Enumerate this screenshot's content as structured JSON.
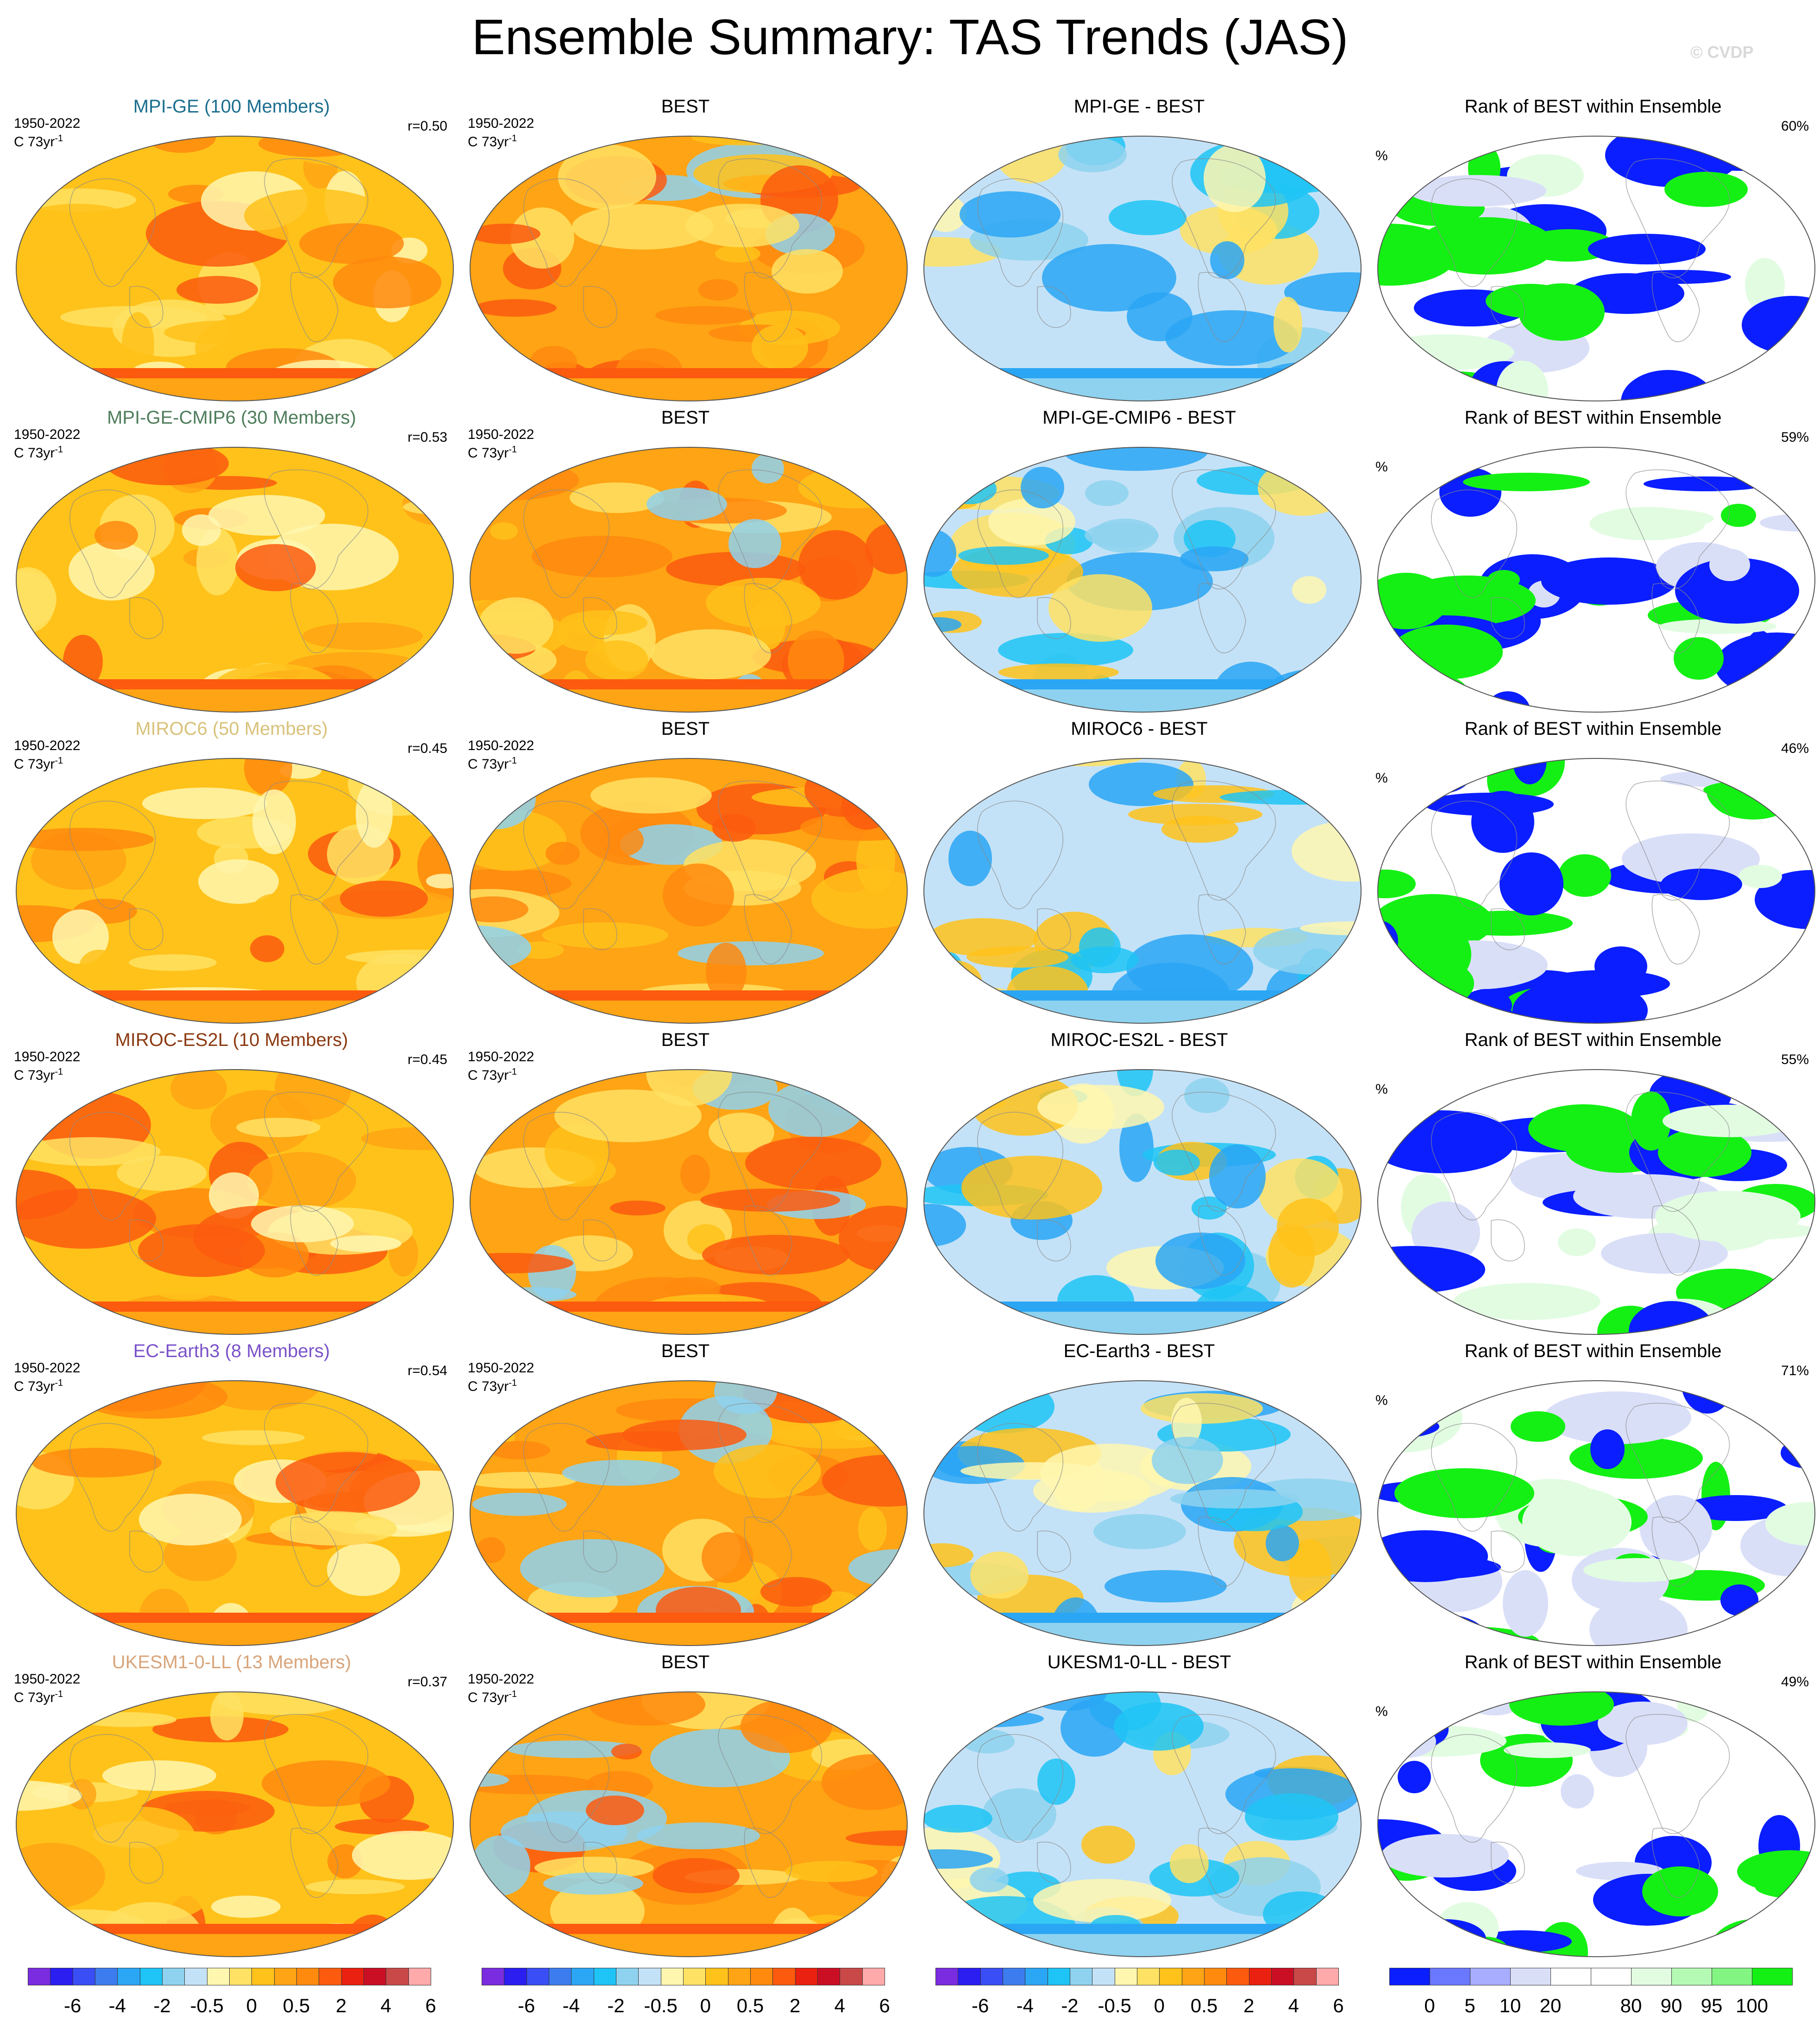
{
  "page": {
    "title": "Ensemble Summary: TAS Trends (JAS)",
    "watermark": "© CVDP"
  },
  "rows": [
    {
      "model_title": "MPI-GE (100 Members)",
      "model_color": "#1a6e8e",
      "period": "1950-2022",
      "units": "C 73yr",
      "units_sup": "-1",
      "r": "r=0.50",
      "obs_title": "BEST",
      "diff_title": "MPI-GE - BEST",
      "rank_title": "Rank of BEST within Ensemble",
      "rank_units": "%",
      "rank_pct": "60%"
    },
    {
      "model_title": "MPI-GE-CMIP6 (30 Members)",
      "model_color": "#4e7d5b",
      "period": "1950-2022",
      "units": "C 73yr",
      "units_sup": "-1",
      "r": "r=0.53",
      "obs_title": "BEST",
      "diff_title": "MPI-GE-CMIP6 - BEST",
      "rank_title": "Rank of BEST within Ensemble",
      "rank_units": "%",
      "rank_pct": "59%"
    },
    {
      "model_title": "MIROC6 (50 Members)",
      "model_color": "#d8c27a",
      "period": "1950-2022",
      "units": "C 73yr",
      "units_sup": "-1",
      "r": "r=0.45",
      "obs_title": "BEST",
      "diff_title": "MIROC6 - BEST",
      "rank_title": "Rank of BEST within Ensemble",
      "rank_units": "%",
      "rank_pct": "46%"
    },
    {
      "model_title": "MIROC-ES2L (10 Members)",
      "model_color": "#8b3a12",
      "period": "1950-2022",
      "units": "C 73yr",
      "units_sup": "-1",
      "r": "r=0.45",
      "obs_title": "BEST",
      "diff_title": "MIROC-ES2L - BEST",
      "rank_title": "Rank of BEST within Ensemble",
      "rank_units": "%",
      "rank_pct": "55%"
    },
    {
      "model_title": "EC-Earth3 (8 Members)",
      "model_color": "#7b52c9",
      "period": "1950-2022",
      "units": "C 73yr",
      "units_sup": "-1",
      "r": "r=0.54",
      "obs_title": "BEST",
      "diff_title": "EC-Earth3 - BEST",
      "rank_title": "Rank of BEST within Ensemble",
      "rank_units": "%",
      "rank_pct": "71%"
    },
    {
      "model_title": "UKESM1-0-LL (13 Members)",
      "model_color": "#d8a47a",
      "period": "1950-2022",
      "units": "C 73yr",
      "units_sup": "-1",
      "r": "r=0.37",
      "obs_title": "BEST",
      "diff_title": "UKESM1-0-LL - BEST",
      "rank_title": "Rank of BEST within Ensemble",
      "rank_units": "%",
      "rank_pct": "49%"
    }
  ],
  "colorbars": {
    "trend": {
      "colors": [
        "#7a2ce0",
        "#2a1ef0",
        "#3a4ef5",
        "#3c7cef",
        "#2aa6f5",
        "#1ec4f5",
        "#8ed2ef",
        "#c4e2f7",
        "#fff7b0",
        "#ffe263",
        "#ffc21a",
        "#ffa414",
        "#ff8a0e",
        "#fc5a0e",
        "#ea2010",
        "#ca0f25",
        "#c94848",
        "#ffaaaa"
      ],
      "labels": [
        "-6",
        "-4",
        "-2",
        "-0.5",
        "0",
        "0.5",
        "2",
        "4",
        "6"
      ]
    },
    "rank": {
      "colors": [
        "#0a1eff",
        "#6a78ff",
        "#a8adff",
        "#dadff8",
        "#ffffff",
        "#ffffff",
        "#e2fce2",
        "#b4fab4",
        "#82f582",
        "#14f014"
      ],
      "labels": [
        "0",
        "5",
        "10",
        "20",
        "80",
        "90",
        "95",
        "100"
      ]
    }
  }
}
